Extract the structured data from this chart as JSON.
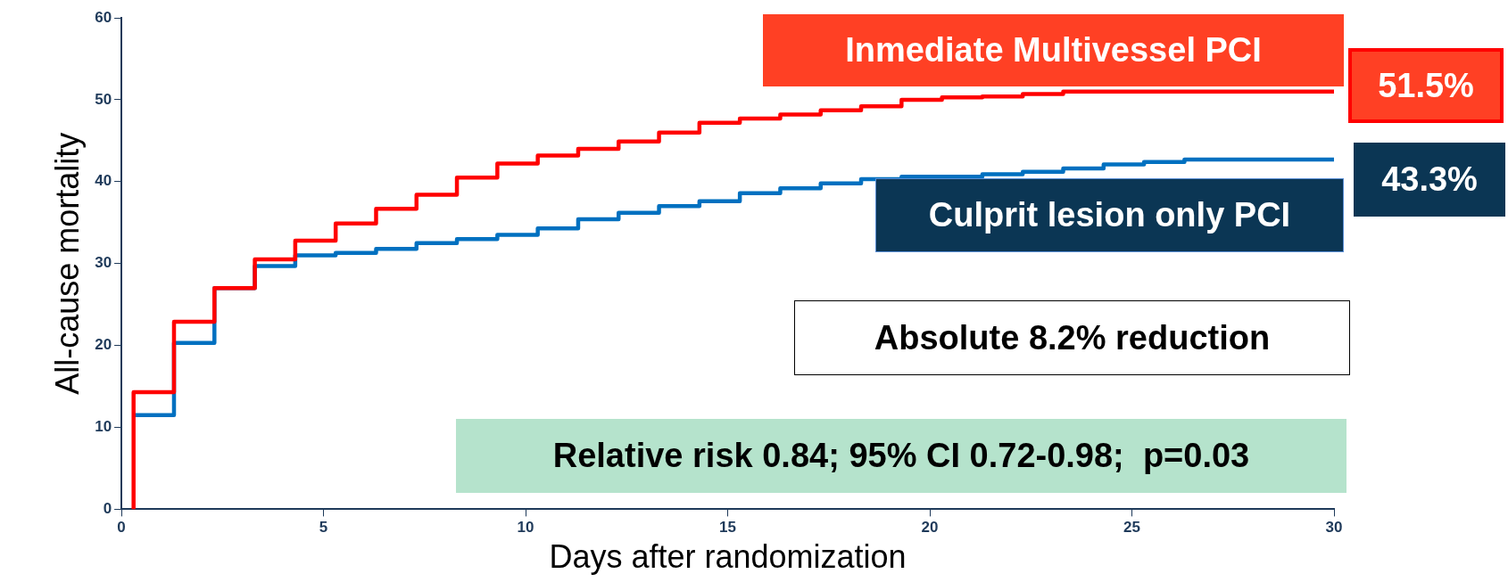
{
  "chart_data": {
    "type": "step",
    "xlabel": "Days after randomization",
    "ylabel": "All-cause mortality",
    "xlim": [
      0,
      30
    ],
    "xticks": [
      0,
      5,
      10,
      15,
      20,
      25,
      30
    ],
    "ylim": [
      0,
      60
    ],
    "yticks": [
      0,
      10,
      20,
      30,
      40,
      50,
      60
    ],
    "grid": false,
    "legend": false,
    "series": [
      {
        "name": "Culprit lesion only PCI",
        "color": "#0070c0",
        "x": [
          0.3,
          1.3,
          2.3,
          3.3,
          4.3,
          5.3,
          6.3,
          7.3,
          8.3,
          9.3,
          10.3,
          11.3,
          12.3,
          13.3,
          14.3,
          15.3,
          16.3,
          17.3,
          18.3,
          19.3,
          21.3,
          22.3,
          23.3,
          24.3,
          25.3,
          26.3,
          30
        ],
        "values": [
          11.5,
          20.3,
          27,
          29.7,
          31,
          31.3,
          31.8,
          32.5,
          33,
          33.5,
          34.3,
          35.4,
          36.2,
          37,
          37.6,
          38.6,
          39.2,
          39.8,
          40.3,
          40.6,
          40.9,
          41.2,
          41.6,
          42.1,
          42.4,
          42.7,
          42.7
        ]
      },
      {
        "name": "Inmediate Multivessel PCI",
        "color": "#ff0000",
        "x": [
          0.3,
          0.3,
          1.3,
          2.3,
          3.3,
          4.3,
          5.3,
          6.3,
          7.3,
          8.3,
          9.3,
          10.3,
          11.3,
          12.3,
          13.3,
          14.3,
          15.3,
          16.3,
          17.3,
          18.3,
          19.3,
          20.3,
          21.3,
          22.3,
          23.3,
          30
        ],
        "values": [
          0,
          14.3,
          22.9,
          27,
          30.5,
          32.8,
          34.9,
          36.7,
          38.4,
          40.5,
          42.2,
          43.2,
          44,
          44.9,
          46,
          47.2,
          47.7,
          48.2,
          48.7,
          49.2,
          50,
          50.3,
          50.4,
          50.7,
          51,
          51
        ]
      }
    ],
    "annotations": [
      "51.5%",
      "43.3%",
      "Absolute 8.2% reduction",
      "Relative risk 0.84; 95% CI 0.72-0.98;  p=0.03"
    ]
  }
}
